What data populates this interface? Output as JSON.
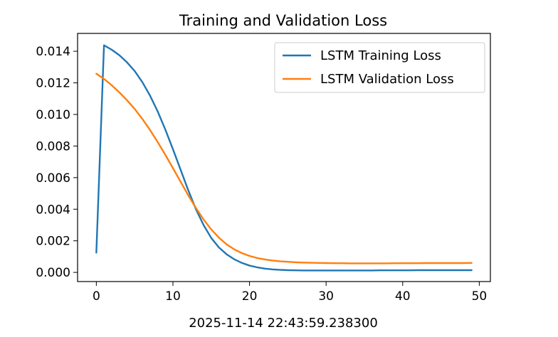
{
  "chart_data": {
    "type": "line",
    "title": "Training and Validation Loss",
    "xlabel": "2025-11-14 22:43:59.238300",
    "ylabel": "",
    "xlim": [
      -2.45,
      51.45
    ],
    "ylim": [
      -0.00058,
      0.01513
    ],
    "xticks": [
      0,
      10,
      20,
      30,
      40,
      50
    ],
    "xtick_labels": [
      "0",
      "10",
      "20",
      "30",
      "40",
      "50"
    ],
    "yticks": [
      0,
      0.002,
      0.004,
      0.006,
      0.008,
      0.01,
      0.012,
      0.014
    ],
    "ytick_labels": [
      "0.000",
      "0.002",
      "0.004",
      "0.006",
      "0.008",
      "0.010",
      "0.012",
      "0.014"
    ],
    "legend_position": "top-right",
    "grid": false,
    "x": [
      0,
      1,
      2,
      3,
      4,
      5,
      6,
      7,
      8,
      9,
      10,
      11,
      12,
      13,
      14,
      15,
      16,
      17,
      18,
      19,
      20,
      21,
      22,
      23,
      24,
      25,
      26,
      27,
      28,
      29,
      30,
      31,
      32,
      33,
      34,
      35,
      36,
      37,
      38,
      39,
      40,
      41,
      42,
      43,
      44,
      45,
      46,
      47,
      48,
      49
    ],
    "series": [
      {
        "name": "LSTM Training Loss",
        "color": "#1f77b4",
        "values": [
          0.00125,
          0.01438,
          0.0141,
          0.01375,
          0.0133,
          0.01275,
          0.01205,
          0.0112,
          0.0102,
          0.00905,
          0.0078,
          0.0065,
          0.0052,
          0.004,
          0.003,
          0.00218,
          0.00158,
          0.00115,
          0.00083,
          0.0006,
          0.00043,
          0.00032,
          0.00024,
          0.00019,
          0.00016,
          0.00014,
          0.00013,
          0.00012,
          0.00012,
          0.00012,
          0.00012,
          0.00012,
          0.00012,
          0.00012,
          0.00012,
          0.00012,
          0.00012,
          0.00013,
          0.00013,
          0.00013,
          0.00013,
          0.00013,
          0.00014,
          0.00014,
          0.00014,
          0.00014,
          0.00014,
          0.00014,
          0.00014,
          0.00014
        ]
      },
      {
        "name": "LSTM Validation Loss",
        "color": "#ff7f0e",
        "values": [
          0.01258,
          0.01225,
          0.01185,
          0.0114,
          0.0109,
          0.01035,
          0.00972,
          0.00902,
          0.00826,
          0.00745,
          0.0066,
          0.00574,
          0.00488,
          0.00408,
          0.00335,
          0.00272,
          0.0022,
          0.00178,
          0.00146,
          0.00122,
          0.00104,
          0.00091,
          0.00082,
          0.00075,
          0.0007,
          0.00067,
          0.00064,
          0.00062,
          0.00061,
          0.0006,
          0.00059,
          0.00058,
          0.00058,
          0.00057,
          0.00057,
          0.00057,
          0.00057,
          0.00057,
          0.00057,
          0.00058,
          0.00058,
          0.00058,
          0.00058,
          0.00059,
          0.00059,
          0.00059,
          0.00059,
          0.00059,
          0.00059,
          0.0006
        ]
      }
    ]
  }
}
